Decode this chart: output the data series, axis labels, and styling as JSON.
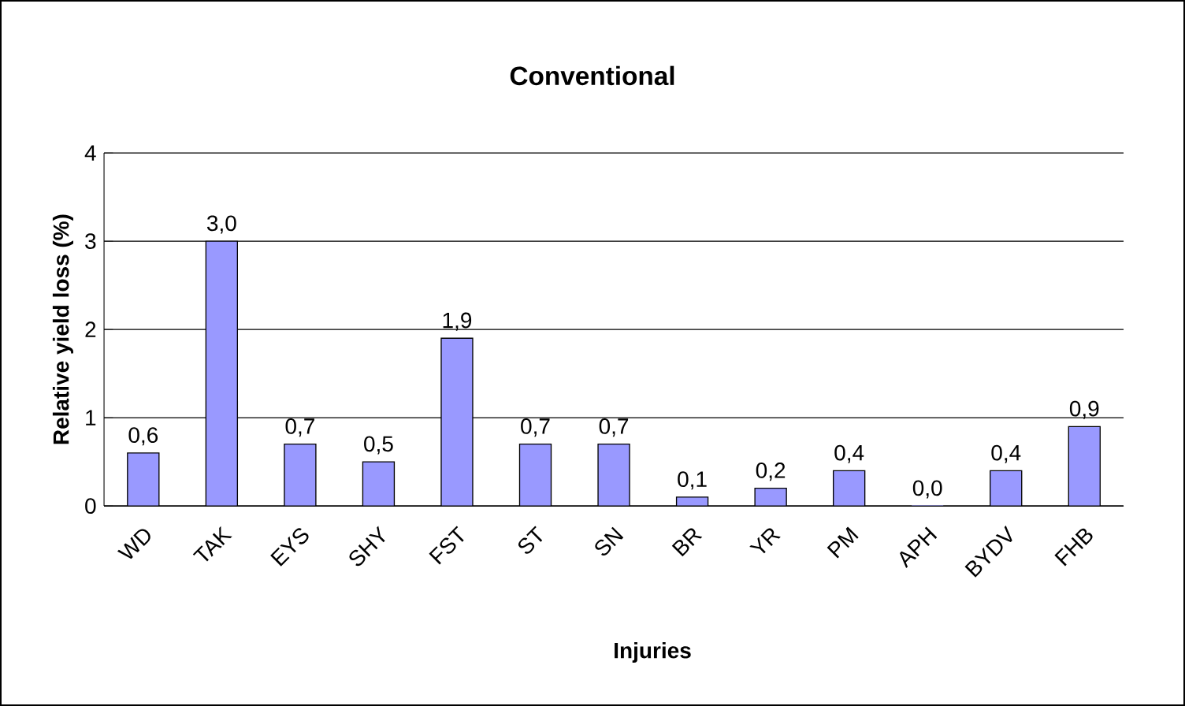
{
  "chart_data": {
    "type": "bar",
    "title": "Conventional",
    "xlabel": "Injuries",
    "ylabel": "Relative yield loss (%)",
    "categories": [
      "WD",
      "TAK",
      "EYS",
      "SHY",
      "FST",
      "ST",
      "SN",
      "BR",
      "YR",
      "PM",
      "APH",
      "BYDV",
      "FHB"
    ],
    "values": [
      0.6,
      3.0,
      0.7,
      0.5,
      1.9,
      0.7,
      0.7,
      0.1,
      0.2,
      0.4,
      0.0,
      0.4,
      0.9
    ],
    "value_labels": [
      "0,6",
      "3,0",
      "0,7",
      "0,5",
      "1,9",
      "0,7",
      "0,7",
      "0,1",
      "0,2",
      "0,4",
      "0,0",
      "0,4",
      "0,9"
    ],
    "color": "#9999ff",
    "ylim": [
      0,
      4
    ],
    "yticks": [
      0,
      1,
      2,
      3,
      4
    ],
    "grid": "y"
  }
}
